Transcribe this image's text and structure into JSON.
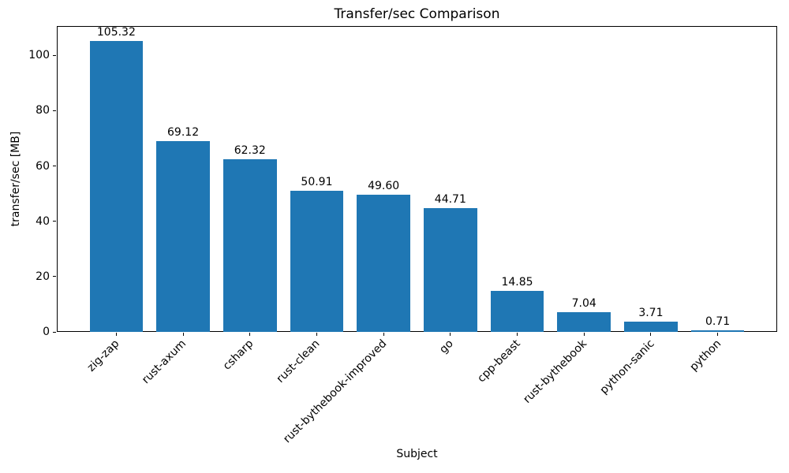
{
  "chart_data": {
    "type": "bar",
    "title": "Transfer/sec Comparison",
    "xlabel": "Subject",
    "ylabel": "transfer/sec [MB]",
    "categories": [
      "zig-zap",
      "rust-axum",
      "csharp",
      "rust-clean",
      "rust-bythebook-improved",
      "go",
      "cpp-beast",
      "rust-bythebook",
      "python-sanic",
      "python"
    ],
    "values": [
      105.32,
      69.12,
      62.32,
      50.91,
      49.6,
      44.71,
      14.85,
      7.04,
      3.71,
      0.71
    ],
    "value_labels": [
      "105.32",
      "69.12",
      "62.32",
      "50.91",
      "49.60",
      "44.71",
      "14.85",
      "7.04",
      "3.71",
      "0.71"
    ],
    "yticks": [
      0,
      20,
      40,
      60,
      80,
      100
    ],
    "ylim": [
      0,
      110.6
    ],
    "x_tick_rotation_deg": 45,
    "bar_color": "#1f77b4",
    "text_color": "#000000",
    "background_color": "#ffffff",
    "grid": false,
    "legend": "none"
  }
}
